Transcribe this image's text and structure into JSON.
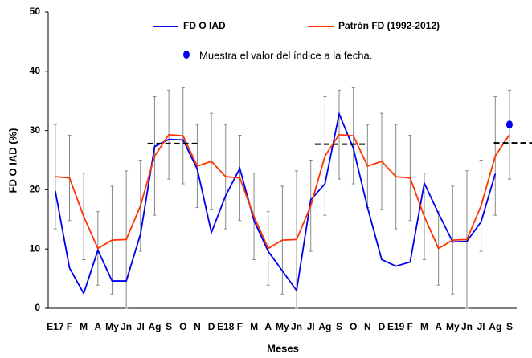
{
  "chart_data": {
    "type": "line",
    "y_label": "FD O IAD (%)",
    "x_label": "Meses",
    "categories": [
      "E17",
      "F",
      "M",
      "A",
      "My",
      "Jn",
      "Jl",
      "Ag",
      "S",
      "O",
      "N",
      "D",
      "E18",
      "F",
      "M",
      "A",
      "My",
      "Jn",
      "Jl",
      "Ag",
      "S",
      "O",
      "N",
      "D",
      "E19",
      "F",
      "M",
      "A",
      "My",
      "Jn",
      "Jl",
      "Ag",
      "S"
    ],
    "ylim": [
      0,
      50
    ],
    "yticks": [
      0,
      10,
      20,
      30,
      40,
      50
    ],
    "series": [
      {
        "name": "FD O IAD",
        "color": "#0000ee",
        "style": "line",
        "values": [
          19.8,
          6.8,
          2.5,
          9.8,
          4.6,
          4.6,
          12.5,
          27.3,
          28.5,
          28.4,
          23.5,
          12.8,
          19.0,
          23.6,
          14.8,
          9.6,
          6.3,
          3.0,
          18.3,
          21.0,
          32.8,
          27.0,
          17.0,
          8.2,
          7.1,
          7.8,
          21.1,
          16.0,
          11.2,
          11.3,
          14.6,
          22.7,
          null
        ]
      },
      {
        "name": "Patrón FD (1992-2012)",
        "color": "#ff3300",
        "style": "line",
        "values": [
          22.2,
          22.0,
          15.5,
          10.1,
          11.5,
          11.6,
          17.3,
          25.7,
          29.3,
          29.1,
          24.0,
          24.8,
          22.2,
          22.0,
          15.5,
          10.1,
          11.5,
          11.6,
          17.3,
          25.7,
          29.3,
          29.1,
          24.0,
          24.8,
          22.2,
          22.0,
          15.5,
          10.1,
          11.5,
          11.6,
          17.3,
          25.7,
          29.3
        ],
        "errors": [
          8.8,
          7.2,
          7.3,
          6.2,
          9.1,
          11.6,
          7.7,
          10.0,
          7.5,
          8.1,
          7.0,
          8.1,
          8.8,
          7.2,
          7.3,
          6.2,
          9.1,
          11.6,
          7.7,
          10.0,
          7.5,
          8.1,
          7.0,
          8.1,
          8.8,
          7.2,
          7.3,
          6.2,
          9.1,
          11.6,
          7.7,
          10.0,
          7.5
        ],
        "error_color": "#888888"
      },
      {
        "name": "Muestra el valor del índice a la fecha.",
        "color": "#0000ee",
        "style": "marker",
        "values": [
          null,
          null,
          null,
          null,
          null,
          null,
          null,
          null,
          null,
          null,
          null,
          null,
          null,
          null,
          null,
          null,
          null,
          null,
          null,
          null,
          null,
          null,
          null,
          null,
          null,
          null,
          null,
          null,
          null,
          null,
          null,
          null,
          31.0
        ]
      }
    ],
    "mean_lines": [
      {
        "value": 27.8,
        "x_range": [
          6.5,
          10.0
        ]
      },
      {
        "value": 27.7,
        "x_range": [
          18.3,
          22.0
        ]
      },
      {
        "value": 27.9,
        "x_range": [
          30.9,
          33.6
        ]
      }
    ]
  }
}
